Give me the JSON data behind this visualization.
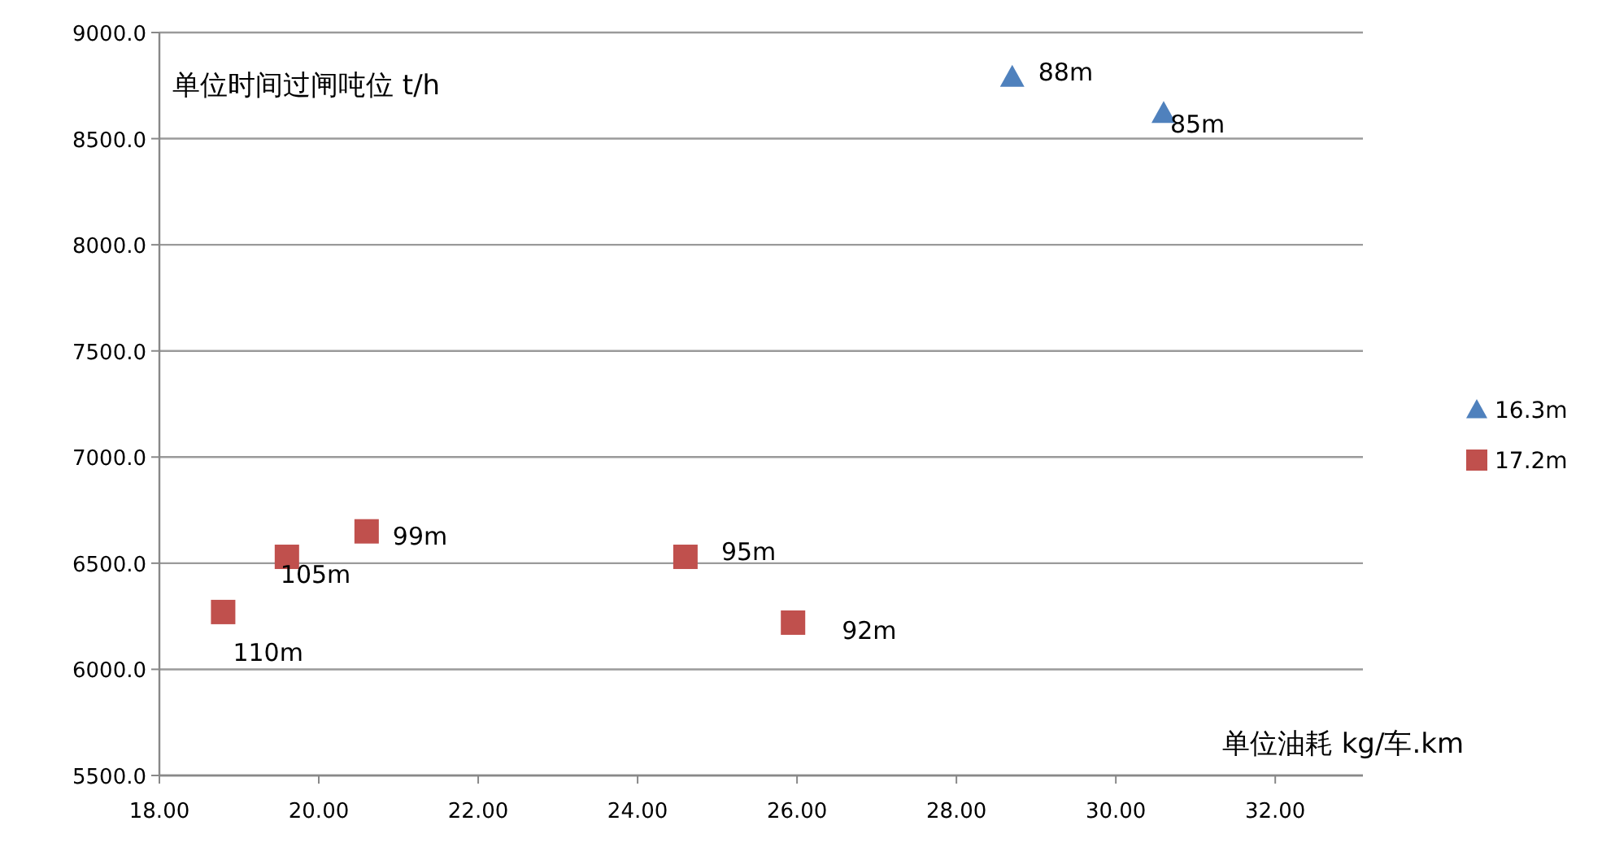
{
  "chart_data": {
    "type": "scatter",
    "xlabel": "单位油耗  kg/车.km",
    "ylabel": "单位时间过闸吨位  t/h",
    "xlim": [
      18,
      33.1
    ],
    "ylim": [
      5500,
      9000
    ],
    "xticks": [
      {
        "value": 18,
        "label": "18.00"
      },
      {
        "value": 20,
        "label": "20.00"
      },
      {
        "value": 22,
        "label": "22.00"
      },
      {
        "value": 24,
        "label": "24.00"
      },
      {
        "value": 26,
        "label": "26.00"
      },
      {
        "value": 28,
        "label": "28.00"
      },
      {
        "value": 30,
        "label": "30.00"
      },
      {
        "value": 32,
        "label": "32.00"
      }
    ],
    "yticks": [
      {
        "value": 5500,
        "label": "5500.0"
      },
      {
        "value": 6000,
        "label": "6000.0"
      },
      {
        "value": 6500,
        "label": "6500.0"
      },
      {
        "value": 7000,
        "label": "7000.0"
      },
      {
        "value": 7500,
        "label": "7500.0"
      },
      {
        "value": 8000,
        "label": "8000.0"
      },
      {
        "value": 8500,
        "label": "8500.0"
      },
      {
        "value": 9000,
        "label": "9000.0"
      }
    ],
    "grid": "y",
    "legend": "right",
    "series": [
      {
        "name": "16.3m",
        "color": "#4f81bd",
        "marker": "triangle",
        "x": [
          28.7,
          30.6
        ],
        "values": [
          8790,
          8620
        ]
      },
      {
        "name": "17.2m",
        "color": "#c0504d",
        "marker": "square",
        "x": [
          18.8,
          19.6,
          20.6,
          24.6,
          25.95
        ],
        "values": [
          6270,
          6530,
          6650,
          6530,
          6220
        ]
      }
    ],
    "annotations": [
      {
        "text": "88m",
        "x": 28.7,
        "y": 8790
      },
      {
        "text": "85m",
        "x": 30.6,
        "y": 8620
      },
      {
        "text": "110m",
        "x": 18.8,
        "y": 6270
      },
      {
        "text": "105m",
        "x": 19.6,
        "y": 6530
      },
      {
        "text": "99m",
        "x": 20.6,
        "y": 6650
      },
      {
        "text": "95m",
        "x": 24.6,
        "y": 6530
      },
      {
        "text": "92m",
        "x": 25.95,
        "y": 6220
      }
    ]
  }
}
